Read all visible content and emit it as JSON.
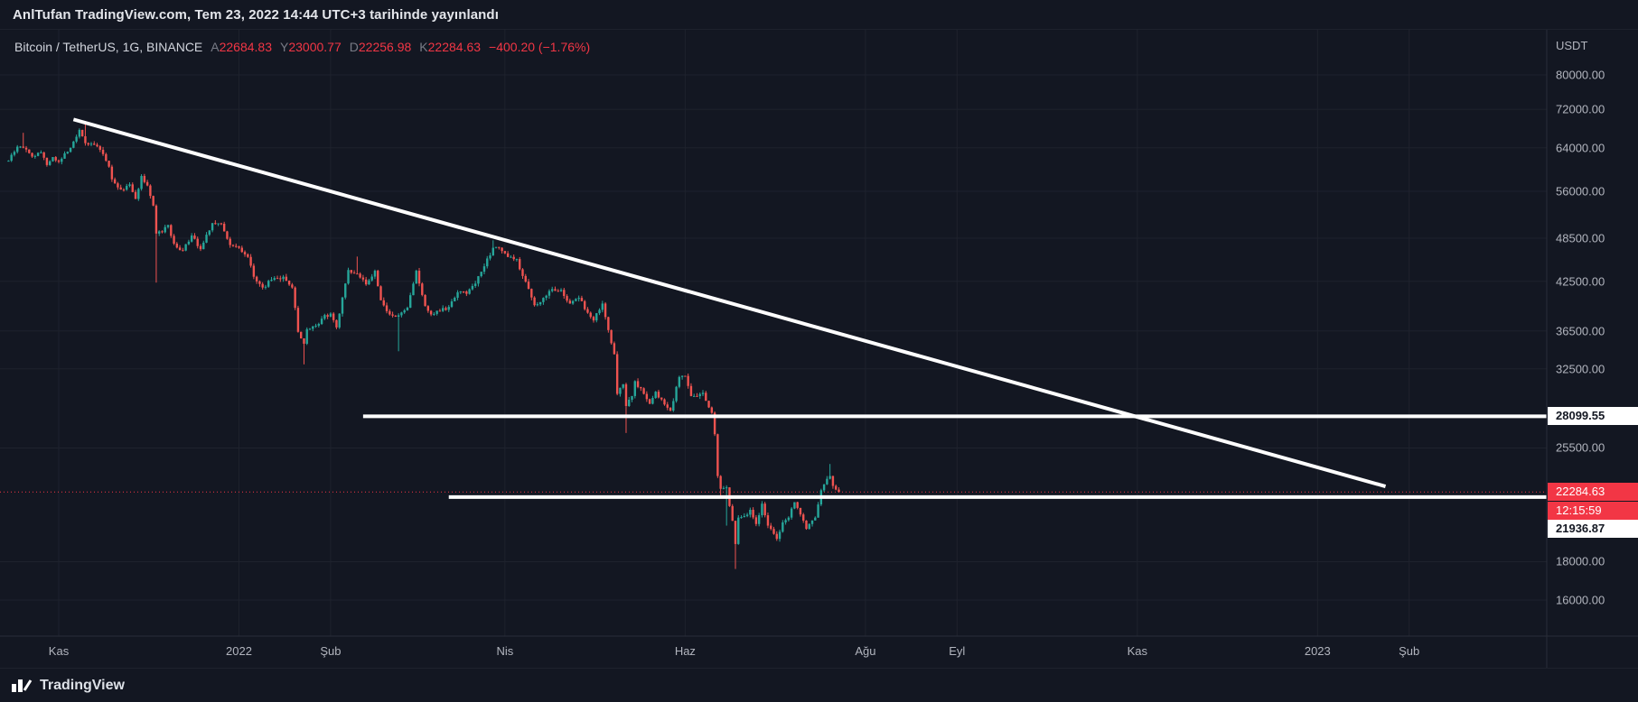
{
  "header": {
    "publish_line": "AnlTufan TradingView.com, Tem 23, 2022 14:44 UTC+3 tarihinde yayınlandı"
  },
  "legend": {
    "symbol": "Bitcoin / TetherUS, 1G, BINANCE",
    "open_label": "A",
    "open": "22684.83",
    "high_label": "Y",
    "high": "23000.77",
    "low_label": "D",
    "low": "22256.98",
    "close_label": "K",
    "close": "22284.63",
    "change": "−400.20 (−1.76%)"
  },
  "axis": {
    "currency": "USDT",
    "price_ticks": [
      {
        "label": "80000.00",
        "value": 80000
      },
      {
        "label": "72000.00",
        "value": 72000
      },
      {
        "label": "64000.00",
        "value": 64000
      },
      {
        "label": "56000.00",
        "value": 56000
      },
      {
        "label": "48500.00",
        "value": 48500
      },
      {
        "label": "42500.00",
        "value": 42500
      },
      {
        "label": "36500.00",
        "value": 36500
      },
      {
        "label": "32500.00",
        "value": 32500
      },
      {
        "label": "25500.00",
        "value": 25500
      },
      {
        "label": "18000.00",
        "value": 18000
      },
      {
        "label": "16000.00",
        "value": 16000
      }
    ],
    "time_ticks": [
      {
        "label": "Kas",
        "day": 0
      },
      {
        "label": "2022",
        "day": 61
      },
      {
        "label": "Şub",
        "day": 92
      },
      {
        "label": "Nis",
        "day": 151
      },
      {
        "label": "Haz",
        "day": 212
      },
      {
        "label": "Ağu",
        "day": 273
      },
      {
        "label": "Eyl",
        "day": 304
      },
      {
        "label": "Kas",
        "day": 365
      },
      {
        "label": "2023",
        "day": 426
      },
      {
        "label": "Şub",
        "day": 457
      }
    ]
  },
  "price_labels": {
    "resistance": "28099.55",
    "current": "22284.63",
    "countdown": "12:15:59",
    "support": "21936.87"
  },
  "footer": {
    "brand": "TradingView"
  },
  "colors": {
    "background": "#131722",
    "grid": "#1e222d",
    "candle_up": "#26a69a",
    "candle_down": "#ef5350",
    "accent_red": "#f23645",
    "line_white": "#ffffff",
    "axis_text": "#b2b5be"
  },
  "chart_data": {
    "type": "candlestick",
    "title": "Bitcoin / TetherUS",
    "interval": "1G",
    "exchange": "BINANCE",
    "scale": "log",
    "price_axis_visible_range": [
      14300,
      92000
    ],
    "last_price": 22284.63,
    "change": -400.2,
    "change_pct": -1.76,
    "anchors": [
      {
        "d": -17,
        "p": 61500
      },
      {
        "d": -14,
        "p": 64200
      },
      {
        "d": -12,
        "p": 64000,
        "hi": 67000
      },
      {
        "d": -9,
        "p": 62300
      },
      {
        "d": -6,
        "p": 63100
      },
      {
        "d": -4,
        "p": 60700
      },
      {
        "d": -2,
        "p": 62200
      },
      {
        "d": 0,
        "p": 61300
      },
      {
        "d": 3,
        "p": 63200
      },
      {
        "d": 7,
        "p": 67600
      },
      {
        "d": 9,
        "p": 64900,
        "hi": 69000
      },
      {
        "d": 11,
        "p": 64800
      },
      {
        "d": 14,
        "p": 63600
      },
      {
        "d": 17,
        "p": 60400
      },
      {
        "d": 18,
        "p": 58100
      },
      {
        "d": 21,
        "p": 56300
      },
      {
        "d": 24,
        "p": 57200
      },
      {
        "d": 26,
        "p": 54700
      },
      {
        "d": 28,
        "p": 58700
      },
      {
        "d": 30,
        "p": 57000
      },
      {
        "d": 32,
        "p": 53600
      },
      {
        "d": 33,
        "p": 49200,
        "lo": 42333
      },
      {
        "d": 35,
        "p": 49400
      },
      {
        "d": 37,
        "p": 50500
      },
      {
        "d": 39,
        "p": 47700
      },
      {
        "d": 42,
        "p": 46700
      },
      {
        "d": 45,
        "p": 48900
      },
      {
        "d": 48,
        "p": 46900
      },
      {
        "d": 52,
        "p": 50800
      },
      {
        "d": 55,
        "p": 50700
      },
      {
        "d": 58,
        "p": 47500
      },
      {
        "d": 60,
        "p": 47300
      },
      {
        "d": 62,
        "p": 46500
      },
      {
        "d": 64,
        "p": 45800
      },
      {
        "d": 66,
        "p": 43100
      },
      {
        "d": 69,
        "p": 41700
      },
      {
        "d": 72,
        "p": 42700
      },
      {
        "d": 76,
        "p": 43100
      },
      {
        "d": 79,
        "p": 41700
      },
      {
        "d": 81,
        "p": 36400
      },
      {
        "d": 83,
        "p": 35100,
        "lo": 32950
      },
      {
        "d": 84,
        "p": 36700
      },
      {
        "d": 87,
        "p": 37100
      },
      {
        "d": 89,
        "p": 37900
      },
      {
        "d": 92,
        "p": 38500
      },
      {
        "d": 94,
        "p": 36900
      },
      {
        "d": 98,
        "p": 44000
      },
      {
        "d": 101,
        "p": 43500,
        "hi": 45850
      },
      {
        "d": 104,
        "p": 42100
      },
      {
        "d": 107,
        "p": 43900
      },
      {
        "d": 109,
        "p": 40100
      },
      {
        "d": 112,
        "p": 38400
      },
      {
        "d": 115,
        "p": 38300,
        "lo": 34300
      },
      {
        "d": 118,
        "p": 39200
      },
      {
        "d": 121,
        "p": 43900
      },
      {
        "d": 124,
        "p": 39400
      },
      {
        "d": 126,
        "p": 38400
      },
      {
        "d": 129,
        "p": 38800
      },
      {
        "d": 132,
        "p": 39300
      },
      {
        "d": 135,
        "p": 41100
      },
      {
        "d": 138,
        "p": 40900
      },
      {
        "d": 141,
        "p": 42200
      },
      {
        "d": 144,
        "p": 44500
      },
      {
        "d": 147,
        "p": 47100,
        "hi": 48200
      },
      {
        "d": 149,
        "p": 47100
      },
      {
        "d": 151,
        "p": 46300
      },
      {
        "d": 153,
        "p": 45800
      },
      {
        "d": 155,
        "p": 45500
      },
      {
        "d": 157,
        "p": 43200
      },
      {
        "d": 161,
        "p": 39500
      },
      {
        "d": 164,
        "p": 40400
      },
      {
        "d": 167,
        "p": 41500
      },
      {
        "d": 170,
        "p": 41400
      },
      {
        "d": 173,
        "p": 39700
      },
      {
        "d": 176,
        "p": 40400
      },
      {
        "d": 179,
        "p": 38600
      },
      {
        "d": 181,
        "p": 37700
      },
      {
        "d": 184,
        "p": 39700
      },
      {
        "d": 186,
        "p": 36600
      },
      {
        "d": 188,
        "p": 34000
      },
      {
        "d": 189,
        "p": 30100
      },
      {
        "d": 191,
        "p": 31000
      },
      {
        "d": 192,
        "p": 29000,
        "lo": 26700
      },
      {
        "d": 194,
        "p": 29900
      },
      {
        "d": 195,
        "p": 31300
      },
      {
        "d": 198,
        "p": 30100
      },
      {
        "d": 200,
        "p": 29200
      },
      {
        "d": 202,
        "p": 30300
      },
      {
        "d": 204,
        "p": 29600
      },
      {
        "d": 207,
        "p": 28600
      },
      {
        "d": 210,
        "p": 31700
      },
      {
        "d": 212,
        "p": 31800
      },
      {
        "d": 214,
        "p": 29900
      },
      {
        "d": 216,
        "p": 29900
      },
      {
        "d": 218,
        "p": 30200
      },
      {
        "d": 221,
        "p": 28400
      },
      {
        "d": 222,
        "p": 26600
      },
      {
        "d": 223,
        "p": 23400
      },
      {
        "d": 224,
        "p": 22500,
        "lo": 21900
      },
      {
        "d": 226,
        "p": 22600,
        "lo": 20100
      },
      {
        "d": 228,
        "p": 20400
      },
      {
        "d": 229,
        "p": 19000,
        "lo": 17600
      },
      {
        "d": 230,
        "p": 20600
      },
      {
        "d": 232,
        "p": 20700
      },
      {
        "d": 234,
        "p": 21100
      },
      {
        "d": 236,
        "p": 20200
      },
      {
        "d": 238,
        "p": 21500
      },
      {
        "d": 240,
        "p": 20100
      },
      {
        "d": 241,
        "p": 19900
      },
      {
        "d": 243,
        "p": 19300
      },
      {
        "d": 245,
        "p": 20300
      },
      {
        "d": 247,
        "p": 20600
      },
      {
        "d": 249,
        "p": 21600
      },
      {
        "d": 251,
        "p": 20800
      },
      {
        "d": 253,
        "p": 19900
      },
      {
        "d": 254,
        "p": 20200
      },
      {
        "d": 256,
        "p": 20600
      },
      {
        "d": 258,
        "p": 22400
      },
      {
        "d": 260,
        "p": 23200
      },
      {
        "d": 261,
        "p": 23400,
        "hi": 24280
      },
      {
        "d": 262,
        "p": 22700
      },
      {
        "d": 263,
        "p": 22450
      },
      {
        "d": 264,
        "p": 22284.63
      }
    ],
    "drawings": [
      {
        "type": "trendline",
        "from_day": 5,
        "from_price": 69800,
        "to_day": 449,
        "to_price": 22670,
        "color": "#ffffff",
        "width": 4
      },
      {
        "type": "horizontal",
        "price": 28099.55,
        "from_day": 103,
        "color": "#ffffff",
        "width": 4
      },
      {
        "type": "horizontal",
        "price": 21936.87,
        "from_day": 132,
        "color": "#ffffff",
        "width": 4
      }
    ],
    "current_price_line": {
      "price": 22284.63,
      "style": "dotted",
      "color": "#f23645"
    }
  }
}
